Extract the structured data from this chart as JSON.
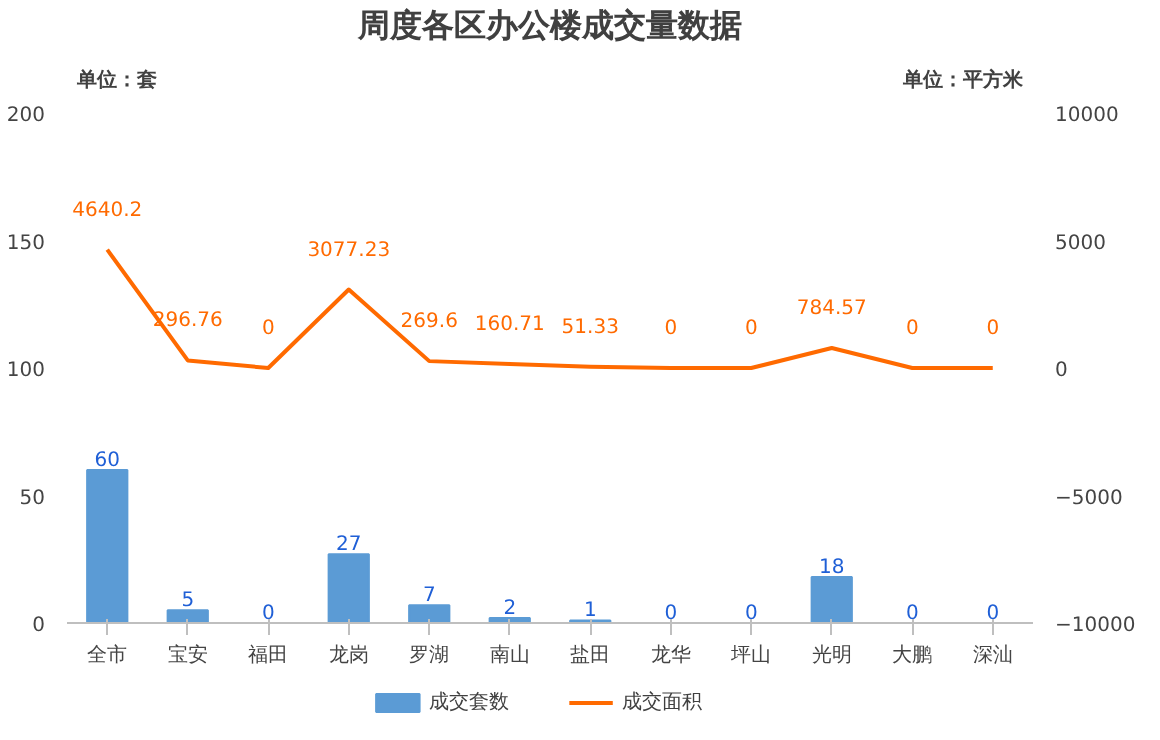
{
  "chart_data": {
    "type": "bar",
    "title": "周度各区办公楼成交量数据",
    "categories": [
      "全市",
      "宝安",
      "福田",
      "龙岗",
      "罗湖",
      "南山",
      "盐田",
      "龙华",
      "坪山",
      "光明",
      "大鹏",
      "深汕"
    ],
    "series": [
      {
        "name": "成交套数",
        "color": "#5b9bd5",
        "values": [
          60,
          5,
          0,
          27,
          7,
          2,
          1,
          0,
          0,
          18,
          0,
          0
        ]
      },
      {
        "name": "成交面积",
        "type": "line",
        "axis": "y2",
        "color": "#ff6a00",
        "values": [
          4640.2,
          296.76,
          0,
          3077.23,
          269.6,
          160.71,
          51.33,
          0,
          0,
          784.57,
          0,
          0
        ]
      }
    ],
    "ylim": [
      0,
      200
    ],
    "yticks": [
      0,
      50,
      100,
      150,
      200
    ],
    "y2lim": [
      -10000,
      10000
    ],
    "y2ticks": [
      -10000,
      -5000,
      0,
      5000,
      10000
    ],
    "annotations": [
      "单位：套",
      "单位：平方米"
    ],
    "data_labels": true,
    "legend": "bottom",
    "grid": false,
    "marker": "none",
    "line_style": "solid"
  }
}
